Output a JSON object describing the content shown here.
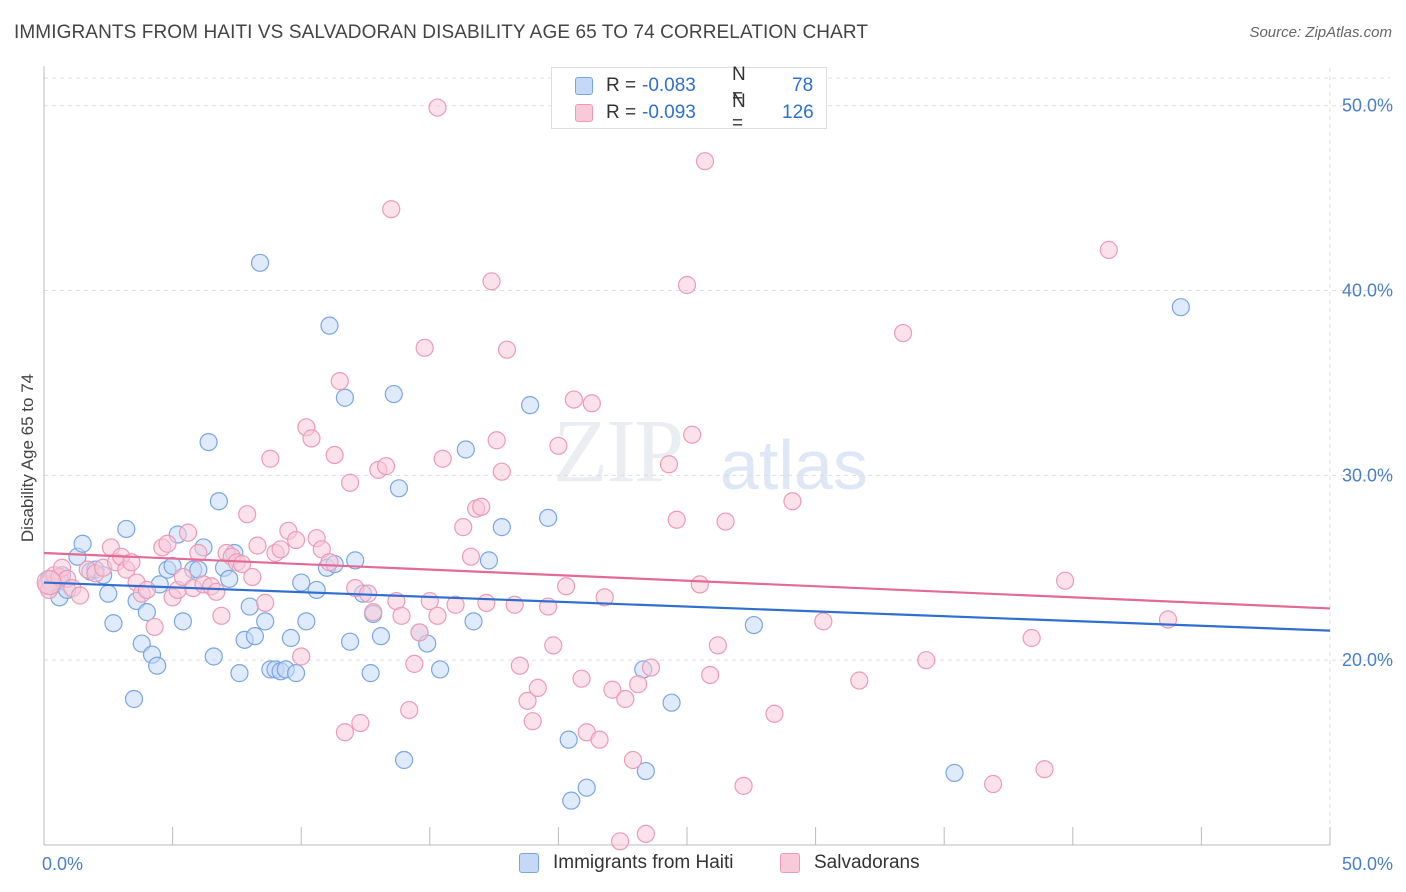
{
  "title": "IMMIGRANTS FROM HAITI VS SALVADORAN DISABILITY AGE 65 TO 74 CORRELATION CHART",
  "source": "Source: ZipAtlas.com",
  "watermark": {
    "part1": "ZIP",
    "part2": "atlas"
  },
  "legend_top": {
    "rows": [
      {
        "r_label": "R =",
        "r_value": "-0.083",
        "n_label": "N =",
        "n_value": "78",
        "fill": "#c5d8f5",
        "stroke": "#7aa6e6"
      },
      {
        "r_label": "R =",
        "r_value": "-0.093",
        "n_label": "N =",
        "n_value": "126",
        "fill": "#f8c9d8",
        "stroke": "#ec9bb6"
      }
    ]
  },
  "legend_bottom": [
    {
      "label": "Immigrants from Haiti",
      "fill": "#c5d8f5",
      "stroke": "#7aa6e6"
    },
    {
      "label": "Salvadorans",
      "fill": "#f8c9d8",
      "stroke": "#ec9bb6"
    }
  ],
  "chart_data": {
    "type": "scatter",
    "title": "IMMIGRANTS FROM HAITI VS SALVADORAN DISABILITY AGE 65 TO 74 CORRELATION CHART",
    "xlabel": "",
    "ylabel": "Disability Age 65 to 74",
    "xlim": [
      0,
      50
    ],
    "ylim": [
      10,
      51.5
    ],
    "x_tick_labels": [
      "0.0%",
      "50.0%"
    ],
    "y_ticks": [
      20,
      30,
      40,
      50
    ],
    "y_tick_labels": [
      "20.0%",
      "30.0%",
      "40.0%",
      "50.0%"
    ],
    "grid": true,
    "legend_position": "top-center",
    "series": [
      {
        "name": "Immigrants from Haiti",
        "color": "#7aa6e6",
        "fill": "#c5d8f5",
        "trend_color": "#2f6fd0",
        "trend": {
          "x": [
            0,
            50
          ],
          "y": [
            24.2,
            21.6
          ]
        },
        "points": [
          [
            0.2,
            24.4
          ],
          [
            0.3,
            24.0
          ],
          [
            0.5,
            24.3
          ],
          [
            0.6,
            23.4
          ],
          [
            0.7,
            24.6
          ],
          [
            0.9,
            23.8
          ],
          [
            1.3,
            25.6
          ],
          [
            1.5,
            26.3
          ],
          [
            1.8,
            24.8
          ],
          [
            2.0,
            24.9
          ],
          [
            2.3,
            24.6
          ],
          [
            2.5,
            23.6
          ],
          [
            2.7,
            22.0
          ],
          [
            3.2,
            27.1
          ],
          [
            3.5,
            17.9
          ],
          [
            3.6,
            23.2
          ],
          [
            3.8,
            20.9
          ],
          [
            4.0,
            22.6
          ],
          [
            4.2,
            20.3
          ],
          [
            4.4,
            19.7
          ],
          [
            4.5,
            24.1
          ],
          [
            4.8,
            24.9
          ],
          [
            5.0,
            25.1
          ],
          [
            5.2,
            26.8
          ],
          [
            5.4,
            22.1
          ],
          [
            5.8,
            24.9
          ],
          [
            6.0,
            24.9
          ],
          [
            6.2,
            26.1
          ],
          [
            6.4,
            31.8
          ],
          [
            6.6,
            20.2
          ],
          [
            6.8,
            28.6
          ],
          [
            7.0,
            25.0
          ],
          [
            7.2,
            24.4
          ],
          [
            7.4,
            25.8
          ],
          [
            7.6,
            19.3
          ],
          [
            7.8,
            21.1
          ],
          [
            8.0,
            22.9
          ],
          [
            8.2,
            21.3
          ],
          [
            8.4,
            41.5
          ],
          [
            8.6,
            22.1
          ],
          [
            8.8,
            19.5
          ],
          [
            9.0,
            19.5
          ],
          [
            9.2,
            19.4
          ],
          [
            9.4,
            19.5
          ],
          [
            9.6,
            21.2
          ],
          [
            9.8,
            19.3
          ],
          [
            10.0,
            24.2
          ],
          [
            10.2,
            22.1
          ],
          [
            10.6,
            23.8
          ],
          [
            11.0,
            25.0
          ],
          [
            11.1,
            38.1
          ],
          [
            11.3,
            25.2
          ],
          [
            11.7,
            34.2
          ],
          [
            11.9,
            21.0
          ],
          [
            12.1,
            25.4
          ],
          [
            12.4,
            23.6
          ],
          [
            12.7,
            19.3
          ],
          [
            12.8,
            22.5
          ],
          [
            13.1,
            21.3
          ],
          [
            13.6,
            34.4
          ],
          [
            13.8,
            29.3
          ],
          [
            14.0,
            14.6
          ],
          [
            14.6,
            21.5
          ],
          [
            14.9,
            20.9
          ],
          [
            15.4,
            19.5
          ],
          [
            16.4,
            31.4
          ],
          [
            16.7,
            22.1
          ],
          [
            17.3,
            25.4
          ],
          [
            17.8,
            27.2
          ],
          [
            18.9,
            33.8
          ],
          [
            19.6,
            27.7
          ],
          [
            20.4,
            15.7
          ],
          [
            20.5,
            12.4
          ],
          [
            21.1,
            13.1
          ],
          [
            23.3,
            19.5
          ],
          [
            23.4,
            14.0
          ],
          [
            24.4,
            17.7
          ],
          [
            27.6,
            21.9
          ],
          [
            35.4,
            13.9
          ],
          [
            44.2,
            39.1
          ]
        ]
      },
      {
        "name": "Salvadorans",
        "color": "#ec9bb6",
        "fill": "#f8c9d8",
        "trend_color": "#e36a93",
        "trend": {
          "x": [
            0,
            50
          ],
          "y": [
            25.8,
            22.8
          ]
        },
        "points": [
          [
            0.1,
            24.1
          ],
          [
            0.2,
            23.8
          ],
          [
            0.4,
            24.6
          ],
          [
            0.6,
            24.5
          ],
          [
            0.7,
            25.0
          ],
          [
            0.9,
            24.4
          ],
          [
            1.1,
            23.9
          ],
          [
            1.4,
            23.5
          ],
          [
            1.7,
            24.9
          ],
          [
            2.0,
            24.7
          ],
          [
            2.3,
            25.0
          ],
          [
            2.6,
            26.1
          ],
          [
            2.8,
            25.3
          ],
          [
            3.0,
            25.6
          ],
          [
            3.2,
            24.9
          ],
          [
            3.4,
            25.3
          ],
          [
            3.6,
            24.2
          ],
          [
            3.8,
            23.6
          ],
          [
            4.0,
            23.8
          ],
          [
            4.3,
            21.8
          ],
          [
            4.6,
            26.1
          ],
          [
            4.8,
            26.3
          ],
          [
            5.0,
            23.4
          ],
          [
            5.2,
            23.8
          ],
          [
            5.4,
            24.5
          ],
          [
            5.6,
            26.9
          ],
          [
            5.8,
            23.9
          ],
          [
            6.0,
            25.8
          ],
          [
            6.2,
            24.1
          ],
          [
            6.5,
            24.0
          ],
          [
            6.7,
            23.7
          ],
          [
            6.9,
            22.4
          ],
          [
            7.1,
            25.8
          ],
          [
            7.3,
            25.6
          ],
          [
            7.5,
            25.3
          ],
          [
            7.7,
            25.2
          ],
          [
            7.9,
            27.9
          ],
          [
            8.1,
            24.5
          ],
          [
            8.3,
            26.2
          ],
          [
            8.6,
            23.1
          ],
          [
            8.8,
            30.9
          ],
          [
            9.0,
            25.8
          ],
          [
            9.2,
            26.0
          ],
          [
            9.5,
            27.0
          ],
          [
            9.8,
            26.5
          ],
          [
            10.0,
            20.2
          ],
          [
            10.2,
            32.6
          ],
          [
            10.4,
            32.0
          ],
          [
            10.6,
            26.6
          ],
          [
            10.8,
            26.0
          ],
          [
            11.1,
            25.3
          ],
          [
            11.3,
            31.1
          ],
          [
            11.5,
            35.1
          ],
          [
            11.7,
            16.1
          ],
          [
            11.9,
            29.6
          ],
          [
            12.1,
            23.9
          ],
          [
            12.3,
            16.6
          ],
          [
            12.6,
            23.6
          ],
          [
            12.8,
            22.6
          ],
          [
            13.0,
            30.3
          ],
          [
            13.3,
            30.5
          ],
          [
            13.5,
            44.4
          ],
          [
            13.7,
            23.2
          ],
          [
            13.9,
            22.4
          ],
          [
            14.2,
            17.3
          ],
          [
            14.4,
            19.8
          ],
          [
            14.6,
            21.5
          ],
          [
            15.0,
            23.2
          ],
          [
            15.3,
            22.4
          ],
          [
            15.5,
            30.9
          ],
          [
            16.0,
            23.0
          ],
          [
            16.3,
            27.2
          ],
          [
            16.6,
            25.6
          ],
          [
            16.8,
            28.2
          ],
          [
            17.0,
            28.3
          ],
          [
            17.2,
            23.1
          ],
          [
            17.4,
            40.5
          ],
          [
            17.6,
            31.9
          ],
          [
            17.8,
            30.2
          ],
          [
            18.0,
            36.8
          ],
          [
            18.3,
            23.0
          ],
          [
            18.5,
            19.7
          ],
          [
            18.8,
            17.8
          ],
          [
            19.0,
            16.7
          ],
          [
            19.2,
            18.5
          ],
          [
            19.6,
            22.9
          ],
          [
            19.8,
            20.8
          ],
          [
            20.0,
            31.6
          ],
          [
            20.3,
            24.0
          ],
          [
            20.6,
            34.1
          ],
          [
            20.9,
            19.0
          ],
          [
            21.1,
            16.1
          ],
          [
            21.3,
            33.9
          ],
          [
            21.6,
            15.7
          ],
          [
            21.8,
            23.4
          ],
          [
            22.1,
            18.4
          ],
          [
            22.4,
            10.2
          ],
          [
            22.6,
            17.9
          ],
          [
            22.9,
            14.6
          ],
          [
            23.1,
            18.7
          ],
          [
            23.4,
            10.6
          ],
          [
            23.6,
            19.6
          ],
          [
            24.3,
            30.6
          ],
          [
            24.6,
            27.6
          ],
          [
            25.0,
            40.3
          ],
          [
            25.2,
            32.2
          ],
          [
            25.5,
            24.1
          ],
          [
            25.9,
            19.2
          ],
          [
            26.2,
            20.8
          ],
          [
            26.5,
            27.5
          ],
          [
            27.2,
            13.2
          ],
          [
            28.4,
            17.1
          ],
          [
            29.1,
            28.6
          ],
          [
            30.3,
            22.1
          ],
          [
            31.7,
            18.9
          ],
          [
            33.4,
            37.7
          ],
          [
            34.3,
            20.0
          ],
          [
            36.9,
            13.3
          ],
          [
            38.4,
            21.2
          ],
          [
            38.9,
            14.1
          ],
          [
            39.7,
            24.3
          ],
          [
            41.4,
            42.2
          ],
          [
            43.7,
            22.2
          ],
          [
            15.3,
            49.9
          ],
          [
            25.7,
            47.0
          ],
          [
            14.8,
            36.9
          ]
        ]
      }
    ]
  }
}
